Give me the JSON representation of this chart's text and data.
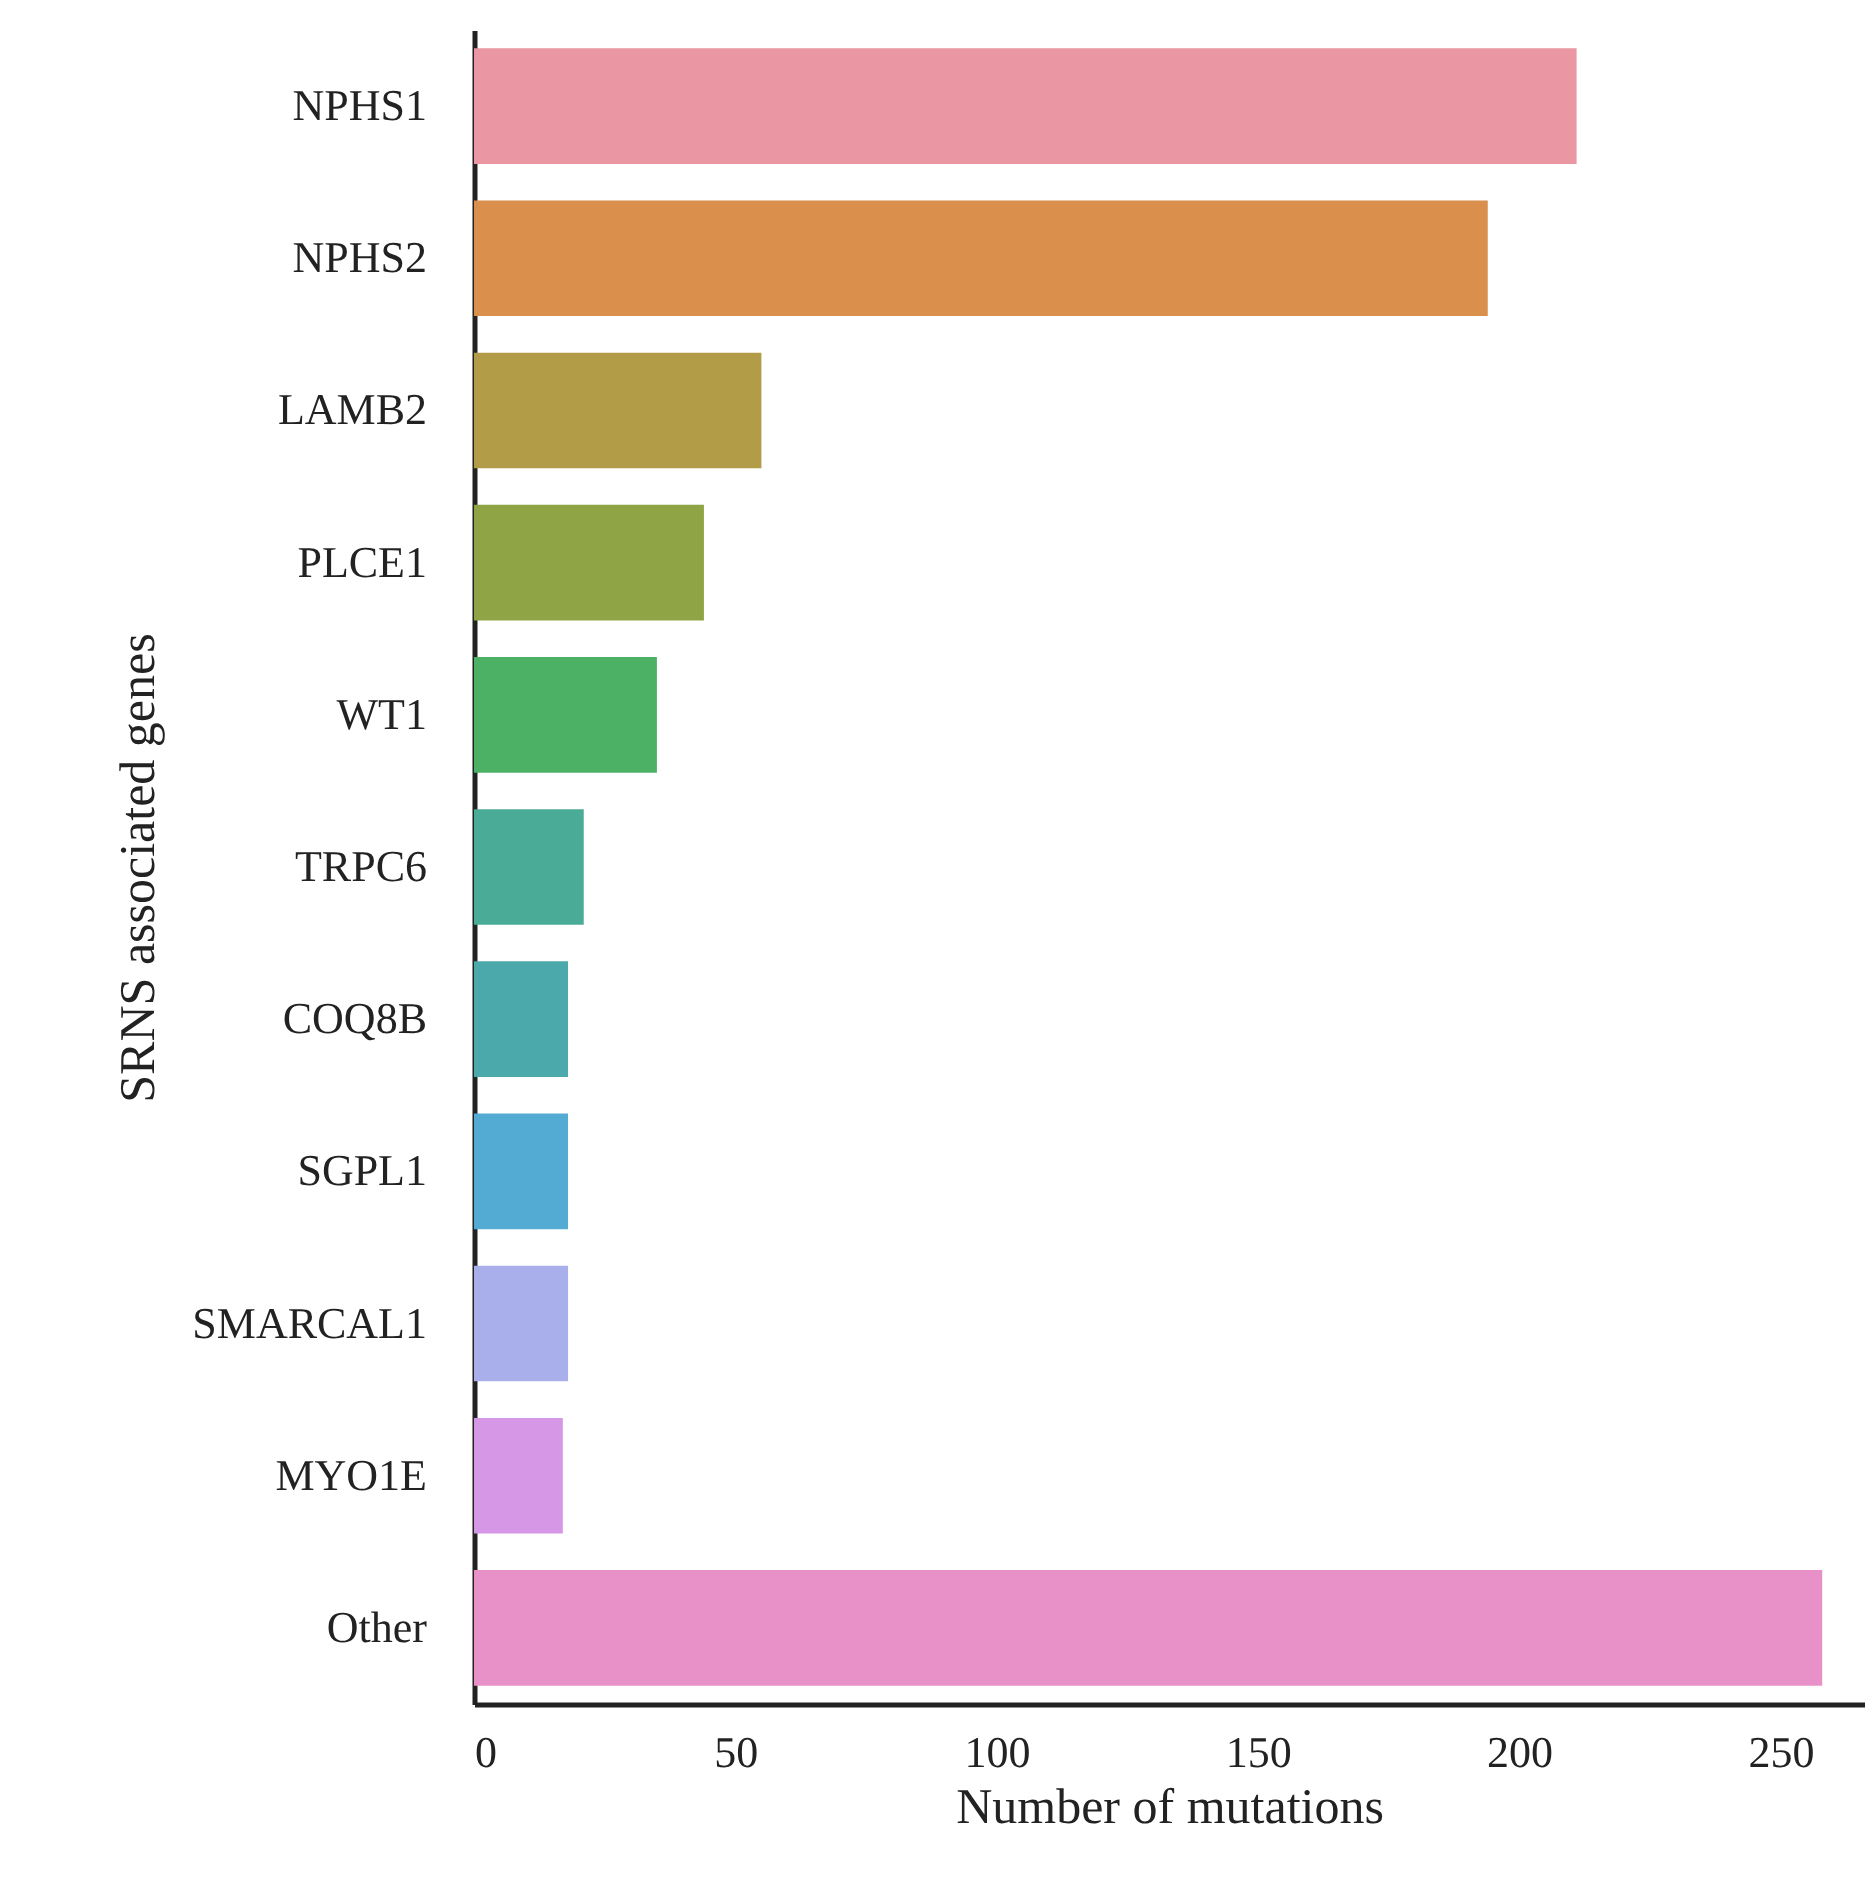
{
  "chart_data": {
    "type": "bar",
    "orientation": "horizontal",
    "xlabel": "Number of mutations",
    "ylabel": "SRNS associated genes",
    "categories": [
      "NPHS1",
      "NPHS2",
      "LAMB2",
      "PLCE1",
      "WT1",
      "TRPC6",
      "COQ8B",
      "SGPL1",
      "SMARCAL1",
      "MYO1E",
      "Other"
    ],
    "values": [
      211,
      194,
      55,
      44,
      35,
      21,
      18,
      18,
      18,
      17,
      258
    ],
    "colors": [
      "#ea96a3",
      "#db8f4d",
      "#b39c48",
      "#8ea445",
      "#4cb065",
      "#4aab96",
      "#4ba9ab",
      "#53aad2",
      "#a9afeb",
      "#d697e6",
      "#e890c8"
    ],
    "xlim": [
      0,
      266
    ],
    "xticks": [
      0,
      50,
      100,
      150,
      200,
      250
    ],
    "grid": false
  }
}
